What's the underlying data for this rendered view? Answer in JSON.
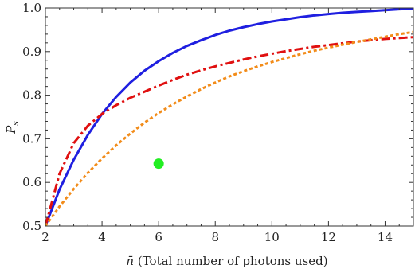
{
  "chart_data": {
    "type": "line",
    "xlabel": {
      "symbol": "n̄",
      "text": " (Total number of photons used)"
    },
    "ylabel": {
      "symbol": "P",
      "subscript": "s"
    },
    "xlim": [
      2,
      15
    ],
    "ylim": [
      0.5,
      1.0
    ],
    "x_ticks": [
      2,
      4,
      6,
      8,
      10,
      12,
      14
    ],
    "x_tick_labels": [
      "2",
      "4",
      "6",
      "8",
      "10",
      "12",
      "14"
    ],
    "y_ticks": [
      0.5,
      0.6,
      0.7,
      0.8,
      0.9,
      1.0
    ],
    "y_tick_labels": [
      "0.5",
      "0.6",
      "0.7",
      "0.8",
      "0.9",
      "1.0"
    ],
    "series": [
      {
        "style": "solid",
        "color": "#1f1fe0",
        "x": [
          2,
          2.5,
          3,
          3.5,
          4,
          4.5,
          5,
          5.5,
          6,
          6.5,
          7,
          7.5,
          8,
          8.5,
          9,
          9.5,
          10,
          10.5,
          11,
          11.5,
          12,
          12.5,
          13,
          13.5,
          14,
          14.5,
          15
        ],
        "y": [
          0.5,
          0.584,
          0.652,
          0.709,
          0.757,
          0.796,
          0.829,
          0.856,
          0.878,
          0.897,
          0.913,
          0.926,
          0.938,
          0.948,
          0.956,
          0.963,
          0.969,
          0.974,
          0.979,
          0.983,
          0.986,
          0.989,
          0.991,
          0.993,
          0.995,
          0.997,
          0.998
        ]
      },
      {
        "style": "dashdot",
        "color": "#e01010",
        "x": [
          2,
          2.5,
          3,
          3.5,
          4,
          4.5,
          5,
          5.5,
          6,
          6.5,
          7,
          7.5,
          8,
          8.5,
          9,
          9.5,
          10,
          10.5,
          11,
          11.5,
          12,
          12.5,
          13,
          13.5,
          14,
          14.5,
          15
        ],
        "y": [
          0.5,
          0.62,
          0.69,
          0.73,
          0.757,
          0.777,
          0.794,
          0.808,
          0.822,
          0.835,
          0.847,
          0.857,
          0.866,
          0.874,
          0.882,
          0.889,
          0.895,
          0.901,
          0.906,
          0.911,
          0.915,
          0.919,
          0.923,
          0.926,
          0.929,
          0.931,
          0.933
        ]
      },
      {
        "style": "dotted",
        "color": "#f28c1a",
        "x": [
          2,
          2.5,
          3,
          3.5,
          4,
          4.5,
          5,
          5.5,
          6,
          6.5,
          7,
          7.5,
          8,
          8.5,
          9,
          9.5,
          10,
          10.5,
          11,
          11.5,
          12,
          12.5,
          13,
          13.5,
          14,
          14.5,
          15
        ],
        "y": [
          0.5,
          0.545,
          0.585,
          0.622,
          0.655,
          0.685,
          0.712,
          0.737,
          0.759,
          0.779,
          0.797,
          0.814,
          0.829,
          0.843,
          0.855,
          0.866,
          0.876,
          0.885,
          0.894,
          0.902,
          0.909,
          0.916,
          0.922,
          0.928,
          0.934,
          0.94,
          0.945
        ]
      }
    ],
    "points": [
      {
        "x": 6.0,
        "y": 0.643,
        "color": "#22ee22"
      }
    ],
    "grid": false,
    "frame": true
  }
}
